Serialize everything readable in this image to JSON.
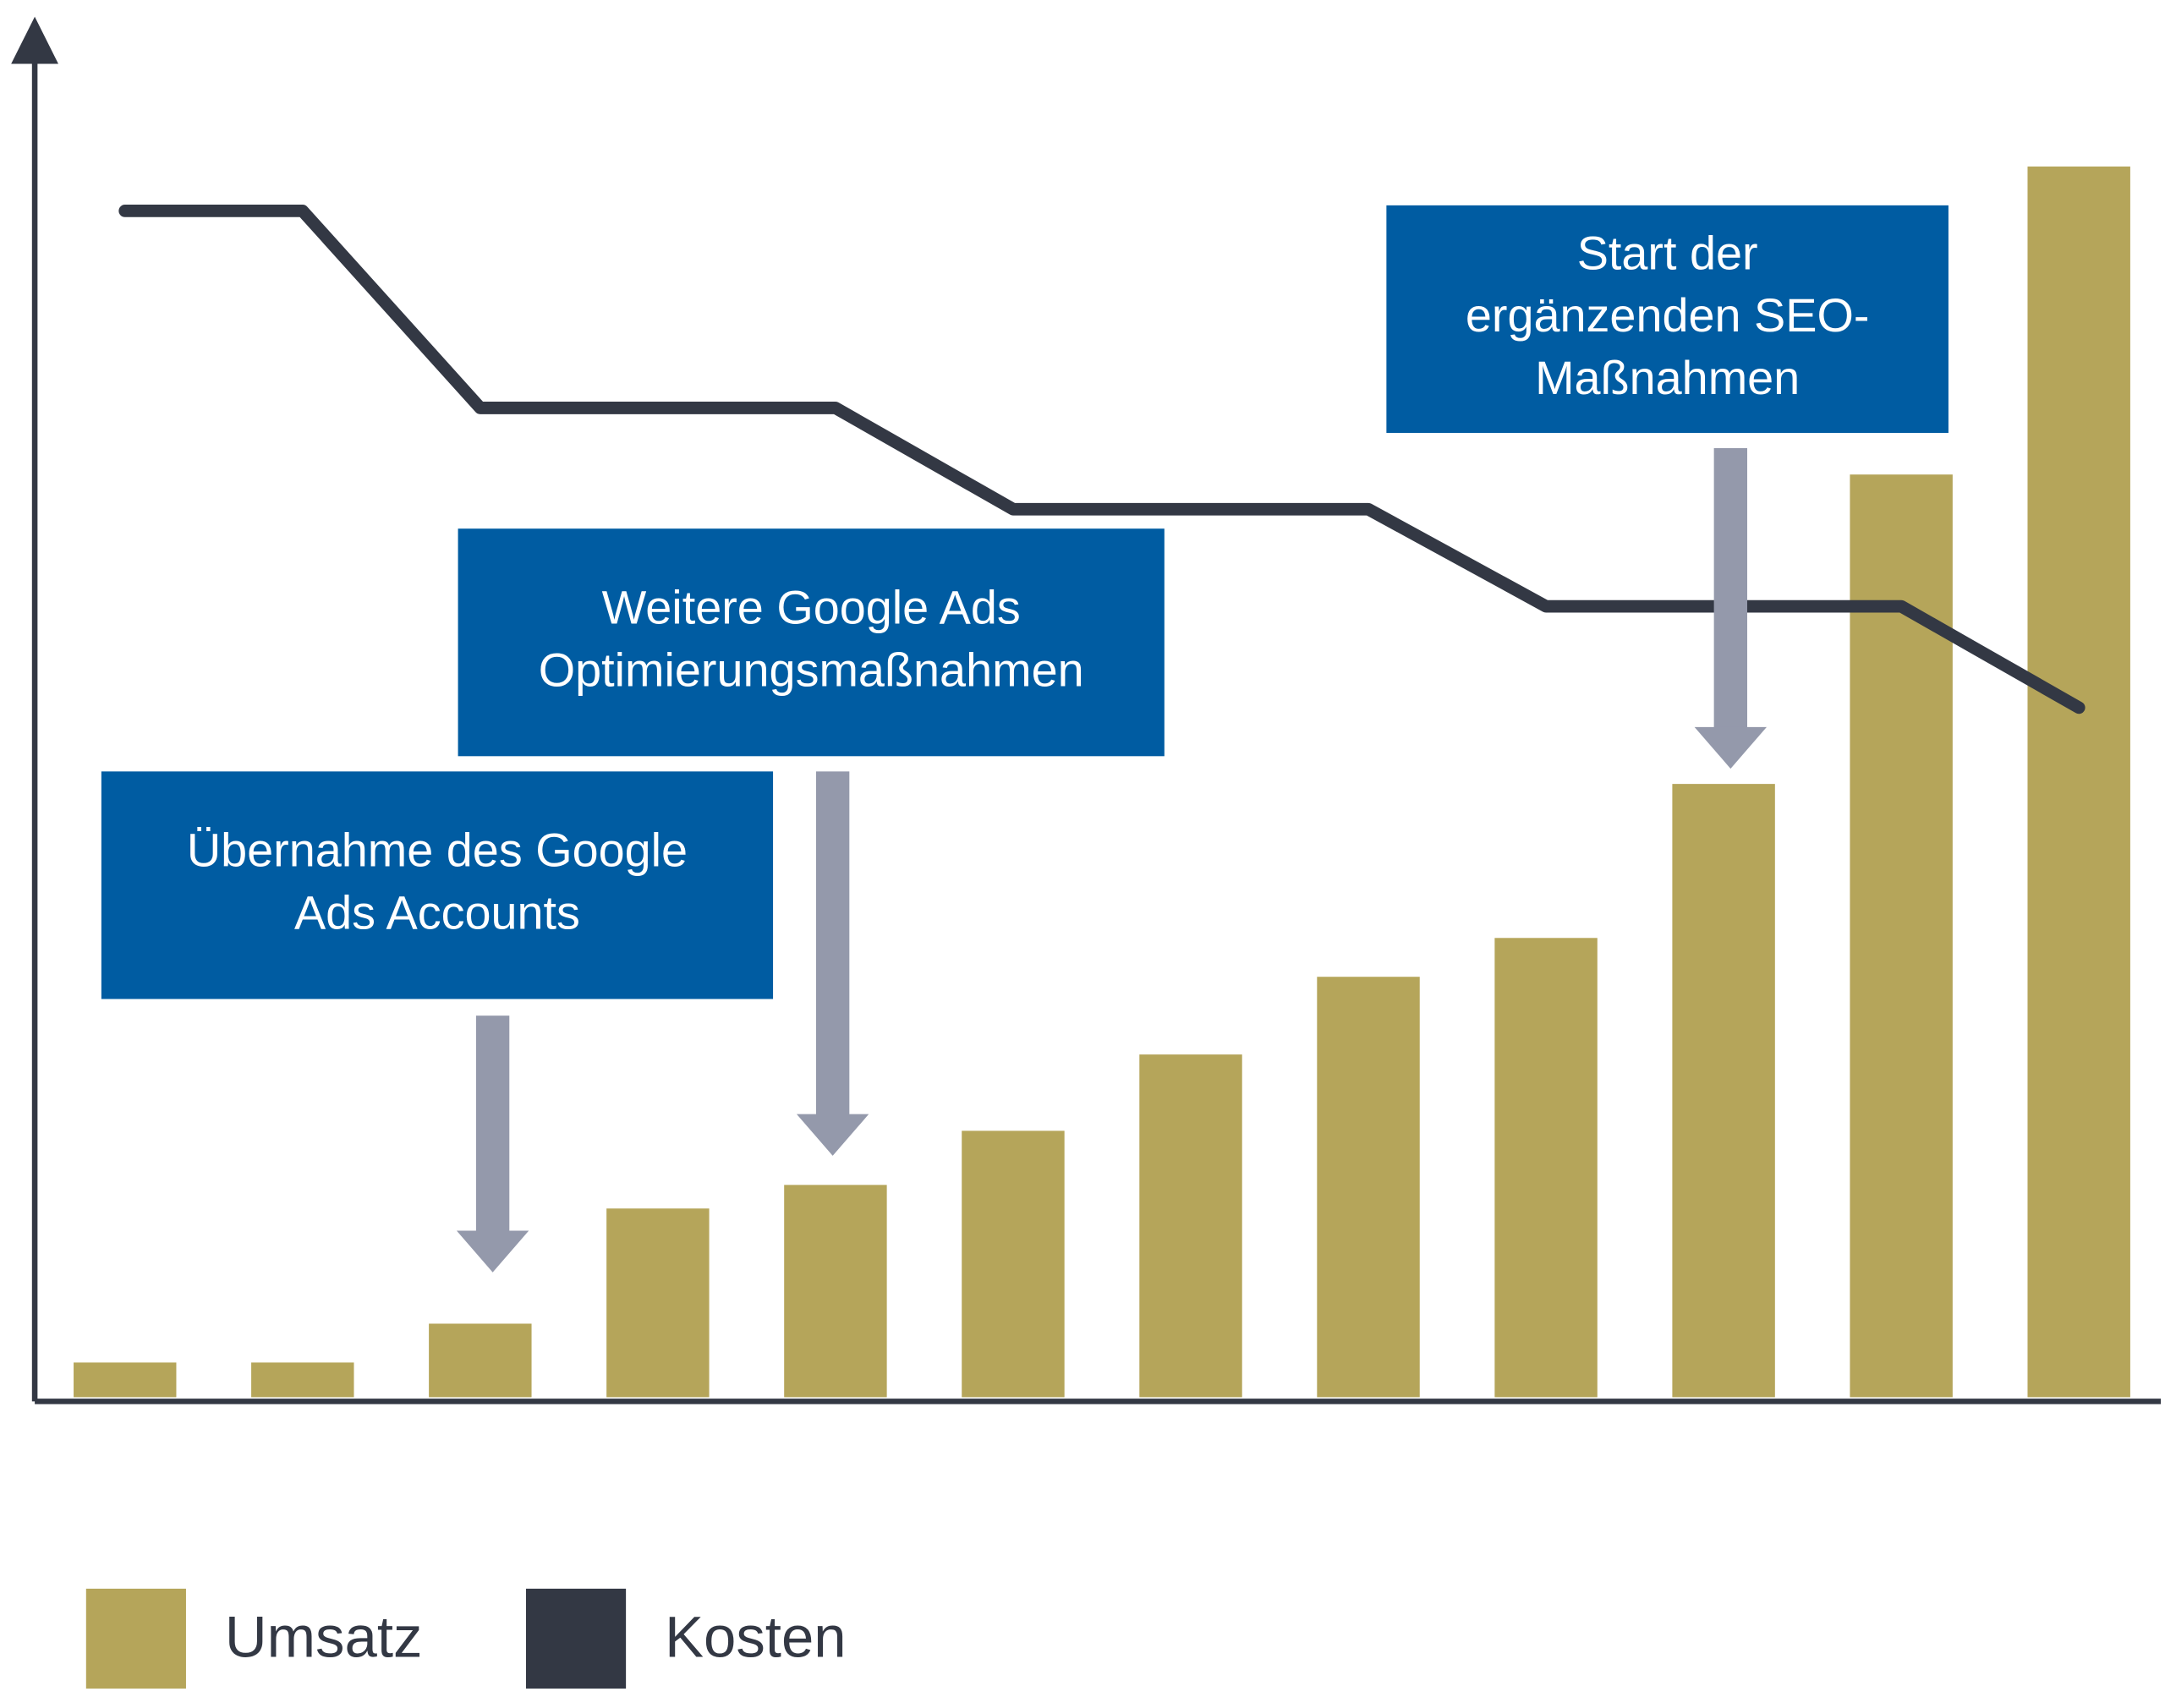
{
  "chart_data": {
    "type": "bar-line",
    "categories": [
      null,
      null,
      null,
      null,
      null,
      null,
      null,
      null,
      null,
      null,
      null,
      null
    ],
    "series": [
      {
        "name": "Umsatz",
        "color": "#b5a55a",
        "type": "bar",
        "values": [
          2.8,
          2.8,
          5.6,
          13.9,
          15.6,
          19.5,
          25,
          30.6,
          33.4,
          44.5,
          66.8,
          89
        ]
      },
      {
        "name": "Kosten",
        "color": "#333844",
        "type": "line",
        "values": [
          85.8,
          85.8,
          71.6,
          71.6,
          71.6,
          64.3,
          64.3,
          64.3,
          57.3,
          57.3,
          57.3,
          50
        ]
      }
    ],
    "ylim": [
      0,
      100
    ],
    "annotations": [
      {
        "lines": [
          "Übernahme des Google",
          "Ads Accounts"
        ],
        "color": "#005ca2"
      },
      {
        "lines": [
          "Weitere Google Ads",
          "Optimierungsmaßnahmen"
        ],
        "color": "#005ca2"
      },
      {
        "lines": [
          "Start der",
          "ergänzenden SEO-",
          "Maßnahmen"
        ],
        "color": "#005ca2"
      }
    ],
    "legend": "bottom-left"
  }
}
